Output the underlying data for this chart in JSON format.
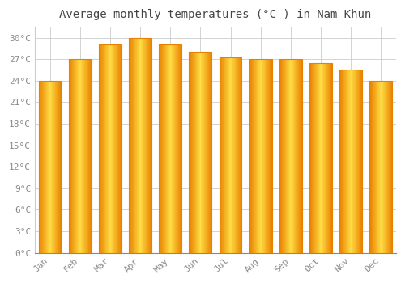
{
  "months": [
    "Jan",
    "Feb",
    "Mar",
    "Apr",
    "May",
    "Jun",
    "Jul",
    "Aug",
    "Sep",
    "Oct",
    "Nov",
    "Dec"
  ],
  "temperatures": [
    24.0,
    27.0,
    29.0,
    30.0,
    29.0,
    28.0,
    27.2,
    27.0,
    27.0,
    26.5,
    25.5,
    24.0
  ],
  "bar_color_face": "#FFBB00",
  "bar_color_edge": "#E88000",
  "title": "Average monthly temperatures (°C ) in Nam Khun",
  "ylabel_ticks": [
    0,
    3,
    6,
    9,
    12,
    15,
    18,
    21,
    24,
    27,
    30
  ],
  "ylim": [
    0,
    31.5
  ],
  "background_color": "#FFFFFF",
  "plot_bg_color": "#FFFFFF",
  "grid_color": "#CCCCCC",
  "title_fontsize": 10,
  "tick_fontsize": 8,
  "tick_color": "#888888",
  "font_family": "monospace"
}
